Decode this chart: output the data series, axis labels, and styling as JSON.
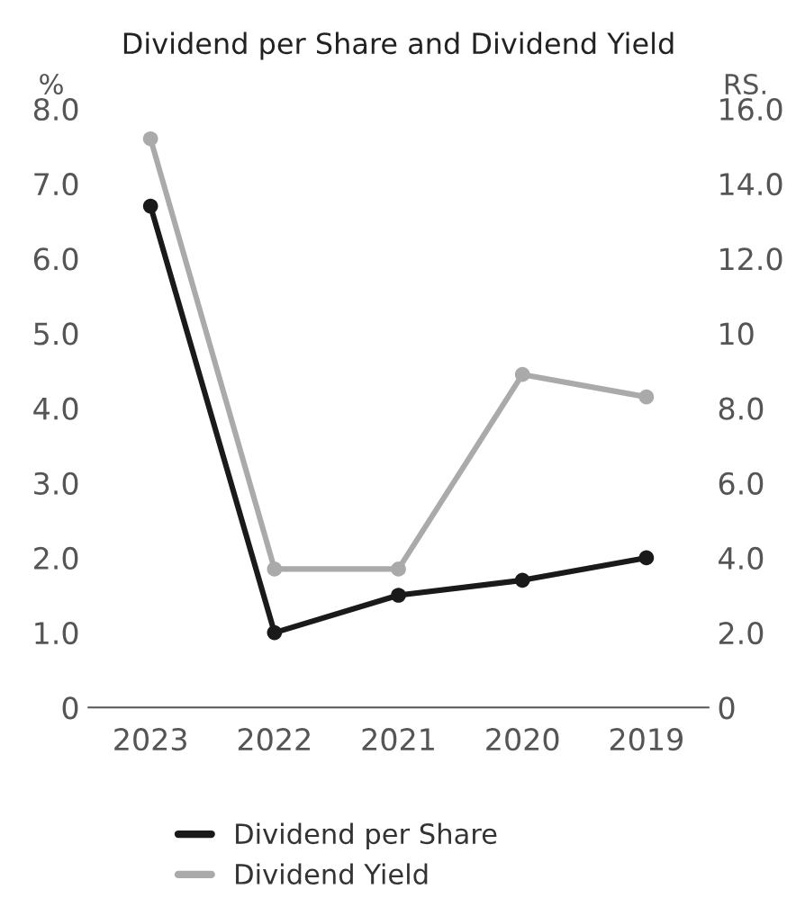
{
  "chart_data": {
    "type": "line",
    "title": "Dividend per Share and Dividend Yield",
    "ylabel": "%",
    "y2label": "RS.",
    "categories": [
      "2023",
      "2022",
      "2021",
      "2020",
      "2019"
    ],
    "series": [
      {
        "name": "Dividend per Share",
        "color": "#1a1a1a",
        "values": [
          13.4,
          2.0,
          3.0,
          3.4,
          4.0
        ],
        "axis": "y2"
      },
      {
        "name": "Dividend Yield",
        "color": "#aaaaaa",
        "values": [
          7.6,
          1.85,
          1.85,
          4.45,
          4.15
        ]
      }
    ],
    "ylim": [
      0,
      8
    ],
    "yticks": [
      {
        "value": 0,
        "label": "0"
      },
      {
        "value": 1,
        "label": "1.0"
      },
      {
        "value": 2,
        "label": "2.0"
      },
      {
        "value": 3,
        "label": "3.0"
      },
      {
        "value": 4,
        "label": "4.0"
      },
      {
        "value": 5,
        "label": "5.0"
      },
      {
        "value": 6,
        "label": "6.0"
      },
      {
        "value": 7,
        "label": "7.0"
      },
      {
        "value": 8,
        "label": "8.0"
      }
    ],
    "y2lim": [
      0,
      16
    ],
    "y2ticks": [
      {
        "value": 0,
        "label": "0"
      },
      {
        "value": 2,
        "label": "2.0"
      },
      {
        "value": 4,
        "label": "4.0"
      },
      {
        "value": 6,
        "label": "6.0"
      },
      {
        "value": 8,
        "label": "8.0"
      },
      {
        "value": 10,
        "label": "10"
      },
      {
        "value": 12,
        "label": "12.0"
      },
      {
        "value": 14,
        "label": "14.0"
      },
      {
        "value": 16,
        "label": "16.0"
      }
    ],
    "marker": "circle",
    "line_style": "solid",
    "grid": false,
    "legend": "bottom"
  }
}
